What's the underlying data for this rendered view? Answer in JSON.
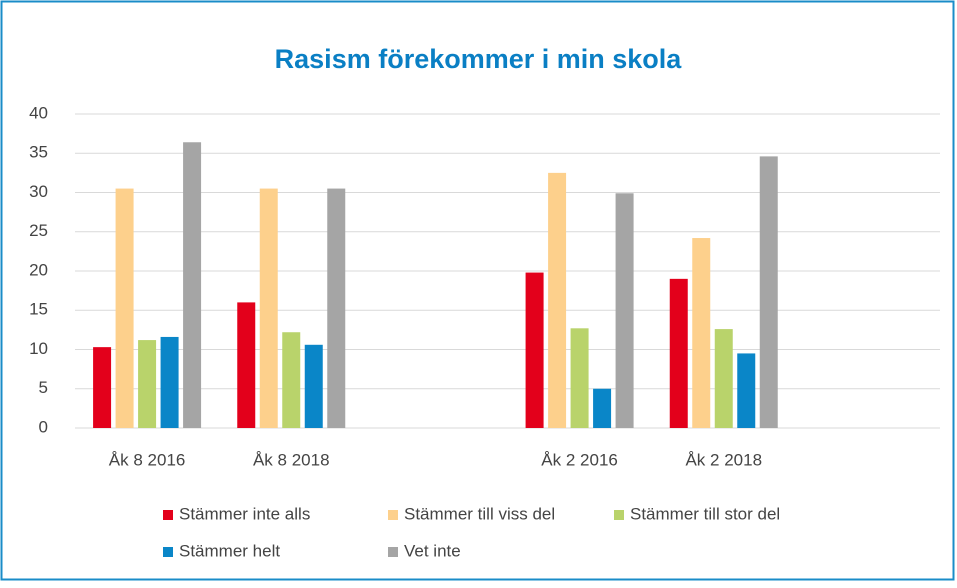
{
  "chart_data": {
    "type": "bar",
    "title": "Rasism förekommer i min skola",
    "categories": [
      "Åk 8 2016",
      "Åk 8 2018",
      null,
      "Åk 2 2016",
      "Åk 2 2018",
      null
    ],
    "series": [
      {
        "name": "Stämmer inte alls",
        "color": "#e3001b",
        "values": [
          10.3,
          16,
          null,
          19.8,
          19,
          null
        ]
      },
      {
        "name": "Stämmer till viss del",
        "color": "#fdd08c",
        "values": [
          30.5,
          30.5,
          null,
          32.5,
          24.2,
          null
        ]
      },
      {
        "name": "Stämmer till stor del",
        "color": "#b9d36b",
        "values": [
          11.2,
          12.2,
          null,
          12.7,
          12.6,
          null
        ]
      },
      {
        "name": "Stämmer helt",
        "color": "#0a86c8",
        "values": [
          11.6,
          10.6,
          null,
          5,
          9.5,
          null
        ]
      },
      {
        "name": "Vet inte",
        "color": "#a5a5a5",
        "values": [
          36.4,
          30.5,
          null,
          29.9,
          34.6,
          null
        ]
      }
    ],
    "ylim": [
      0,
      40
    ],
    "yticks": [
      0,
      5,
      10,
      15,
      20,
      25,
      30,
      35,
      40
    ],
    "grid": true,
    "legend": "bottom"
  }
}
